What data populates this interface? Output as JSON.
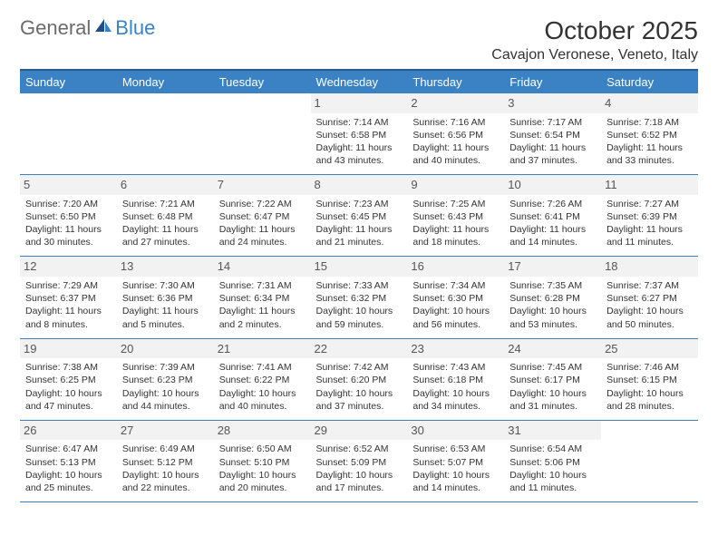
{
  "logo": {
    "general": "General",
    "blue": "Blue"
  },
  "title": "October 2025",
  "location": "Cavajon Veronese, Veneto, Italy",
  "colors": {
    "header_bg": "#3b82c4",
    "header_border": "#2a5a8a",
    "cell_border": "#3b82c4",
    "daynum_bg": "#f2f2f2",
    "logo_gray": "#6b6b6b",
    "logo_blue": "#3b82c4"
  },
  "weekdays": [
    "Sunday",
    "Monday",
    "Tuesday",
    "Wednesday",
    "Thursday",
    "Friday",
    "Saturday"
  ],
  "weeks": [
    [
      {
        "num": "",
        "sunrise": "",
        "sunset": "",
        "daylight": ""
      },
      {
        "num": "",
        "sunrise": "",
        "sunset": "",
        "daylight": ""
      },
      {
        "num": "",
        "sunrise": "",
        "sunset": "",
        "daylight": ""
      },
      {
        "num": "1",
        "sunrise": "Sunrise: 7:14 AM",
        "sunset": "Sunset: 6:58 PM",
        "daylight": "Daylight: 11 hours and 43 minutes."
      },
      {
        "num": "2",
        "sunrise": "Sunrise: 7:16 AM",
        "sunset": "Sunset: 6:56 PM",
        "daylight": "Daylight: 11 hours and 40 minutes."
      },
      {
        "num": "3",
        "sunrise": "Sunrise: 7:17 AM",
        "sunset": "Sunset: 6:54 PM",
        "daylight": "Daylight: 11 hours and 37 minutes."
      },
      {
        "num": "4",
        "sunrise": "Sunrise: 7:18 AM",
        "sunset": "Sunset: 6:52 PM",
        "daylight": "Daylight: 11 hours and 33 minutes."
      }
    ],
    [
      {
        "num": "5",
        "sunrise": "Sunrise: 7:20 AM",
        "sunset": "Sunset: 6:50 PM",
        "daylight": "Daylight: 11 hours and 30 minutes."
      },
      {
        "num": "6",
        "sunrise": "Sunrise: 7:21 AM",
        "sunset": "Sunset: 6:48 PM",
        "daylight": "Daylight: 11 hours and 27 minutes."
      },
      {
        "num": "7",
        "sunrise": "Sunrise: 7:22 AM",
        "sunset": "Sunset: 6:47 PM",
        "daylight": "Daylight: 11 hours and 24 minutes."
      },
      {
        "num": "8",
        "sunrise": "Sunrise: 7:23 AM",
        "sunset": "Sunset: 6:45 PM",
        "daylight": "Daylight: 11 hours and 21 minutes."
      },
      {
        "num": "9",
        "sunrise": "Sunrise: 7:25 AM",
        "sunset": "Sunset: 6:43 PM",
        "daylight": "Daylight: 11 hours and 18 minutes."
      },
      {
        "num": "10",
        "sunrise": "Sunrise: 7:26 AM",
        "sunset": "Sunset: 6:41 PM",
        "daylight": "Daylight: 11 hours and 14 minutes."
      },
      {
        "num": "11",
        "sunrise": "Sunrise: 7:27 AM",
        "sunset": "Sunset: 6:39 PM",
        "daylight": "Daylight: 11 hours and 11 minutes."
      }
    ],
    [
      {
        "num": "12",
        "sunrise": "Sunrise: 7:29 AM",
        "sunset": "Sunset: 6:37 PM",
        "daylight": "Daylight: 11 hours and 8 minutes."
      },
      {
        "num": "13",
        "sunrise": "Sunrise: 7:30 AM",
        "sunset": "Sunset: 6:36 PM",
        "daylight": "Daylight: 11 hours and 5 minutes."
      },
      {
        "num": "14",
        "sunrise": "Sunrise: 7:31 AM",
        "sunset": "Sunset: 6:34 PM",
        "daylight": "Daylight: 11 hours and 2 minutes."
      },
      {
        "num": "15",
        "sunrise": "Sunrise: 7:33 AM",
        "sunset": "Sunset: 6:32 PM",
        "daylight": "Daylight: 10 hours and 59 minutes."
      },
      {
        "num": "16",
        "sunrise": "Sunrise: 7:34 AM",
        "sunset": "Sunset: 6:30 PM",
        "daylight": "Daylight: 10 hours and 56 minutes."
      },
      {
        "num": "17",
        "sunrise": "Sunrise: 7:35 AM",
        "sunset": "Sunset: 6:28 PM",
        "daylight": "Daylight: 10 hours and 53 minutes."
      },
      {
        "num": "18",
        "sunrise": "Sunrise: 7:37 AM",
        "sunset": "Sunset: 6:27 PM",
        "daylight": "Daylight: 10 hours and 50 minutes."
      }
    ],
    [
      {
        "num": "19",
        "sunrise": "Sunrise: 7:38 AM",
        "sunset": "Sunset: 6:25 PM",
        "daylight": "Daylight: 10 hours and 47 minutes."
      },
      {
        "num": "20",
        "sunrise": "Sunrise: 7:39 AM",
        "sunset": "Sunset: 6:23 PM",
        "daylight": "Daylight: 10 hours and 44 minutes."
      },
      {
        "num": "21",
        "sunrise": "Sunrise: 7:41 AM",
        "sunset": "Sunset: 6:22 PM",
        "daylight": "Daylight: 10 hours and 40 minutes."
      },
      {
        "num": "22",
        "sunrise": "Sunrise: 7:42 AM",
        "sunset": "Sunset: 6:20 PM",
        "daylight": "Daylight: 10 hours and 37 minutes."
      },
      {
        "num": "23",
        "sunrise": "Sunrise: 7:43 AM",
        "sunset": "Sunset: 6:18 PM",
        "daylight": "Daylight: 10 hours and 34 minutes."
      },
      {
        "num": "24",
        "sunrise": "Sunrise: 7:45 AM",
        "sunset": "Sunset: 6:17 PM",
        "daylight": "Daylight: 10 hours and 31 minutes."
      },
      {
        "num": "25",
        "sunrise": "Sunrise: 7:46 AM",
        "sunset": "Sunset: 6:15 PM",
        "daylight": "Daylight: 10 hours and 28 minutes."
      }
    ],
    [
      {
        "num": "26",
        "sunrise": "Sunrise: 6:47 AM",
        "sunset": "Sunset: 5:13 PM",
        "daylight": "Daylight: 10 hours and 25 minutes."
      },
      {
        "num": "27",
        "sunrise": "Sunrise: 6:49 AM",
        "sunset": "Sunset: 5:12 PM",
        "daylight": "Daylight: 10 hours and 22 minutes."
      },
      {
        "num": "28",
        "sunrise": "Sunrise: 6:50 AM",
        "sunset": "Sunset: 5:10 PM",
        "daylight": "Daylight: 10 hours and 20 minutes."
      },
      {
        "num": "29",
        "sunrise": "Sunrise: 6:52 AM",
        "sunset": "Sunset: 5:09 PM",
        "daylight": "Daylight: 10 hours and 17 minutes."
      },
      {
        "num": "30",
        "sunrise": "Sunrise: 6:53 AM",
        "sunset": "Sunset: 5:07 PM",
        "daylight": "Daylight: 10 hours and 14 minutes."
      },
      {
        "num": "31",
        "sunrise": "Sunrise: 6:54 AM",
        "sunset": "Sunset: 5:06 PM",
        "daylight": "Daylight: 10 hours and 11 minutes."
      },
      {
        "num": "",
        "sunrise": "",
        "sunset": "",
        "daylight": ""
      }
    ]
  ]
}
